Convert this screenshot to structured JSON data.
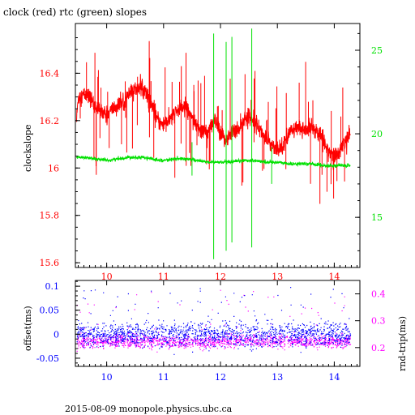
{
  "title": "clock (red) rtc (green) slopes",
  "footer": "2015-08-09  monopole.physics.ubc.ca",
  "colors": {
    "clock": "#ff0000",
    "rtc": "#00e000",
    "offset": "#0000ff",
    "rndtrip": "#ff00ff",
    "axis": "#000000"
  },
  "chart_data": [
    {
      "type": "line",
      "title": "clock (red) rtc (green) slopes",
      "xlim": [
        9.45,
        14.45
      ],
      "x_ticks": [
        "10",
        "11",
        "12",
        "13",
        "14"
      ],
      "left_axis": {
        "label": "clockslope",
        "ylim": [
          15.58,
          16.61
        ],
        "ticks": [
          "15.6",
          "15.8",
          "16",
          "16.2",
          "16.4"
        ]
      },
      "right_axis": {
        "ylim": [
          12.0,
          26.6
        ],
        "ticks": [
          "15",
          "20",
          "25"
        ]
      },
      "series": [
        {
          "name": "clock",
          "axis": "left",
          "x": [
            9.47,
            9.5,
            9.6,
            9.7,
            9.8,
            9.9,
            10.0,
            10.1,
            10.2,
            10.3,
            10.4,
            10.5,
            10.6,
            10.7,
            10.8,
            10.9,
            11.0,
            11.1,
            11.2,
            11.3,
            11.4,
            11.5,
            11.6,
            11.7,
            11.8,
            11.9,
            12.0,
            12.1,
            12.2,
            12.3,
            12.4,
            12.5,
            12.6,
            12.7,
            12.8,
            12.9,
            13.0,
            13.1,
            13.2,
            13.3,
            13.4,
            13.5,
            13.6,
            13.7,
            13.8,
            13.9,
            14.0,
            14.1,
            14.2,
            14.28
          ],
          "values": [
            16.2,
            16.3,
            16.31,
            16.3,
            16.26,
            16.24,
            16.22,
            16.25,
            16.26,
            16.28,
            16.31,
            16.33,
            16.34,
            16.32,
            16.26,
            16.2,
            16.18,
            16.2,
            16.23,
            16.25,
            16.26,
            16.22,
            16.17,
            16.15,
            16.16,
            16.2,
            16.14,
            16.12,
            16.15,
            16.16,
            16.2,
            16.22,
            16.2,
            16.16,
            16.12,
            16.1,
            16.08,
            16.1,
            16.15,
            16.16,
            16.17,
            16.16,
            16.18,
            16.15,
            16.12,
            16.08,
            16.05,
            16.07,
            16.12,
            16.14
          ]
        },
        {
          "name": "rtc",
          "axis": "right",
          "x": [
            9.47,
            9.6,
            9.8,
            10.0,
            10.2,
            10.4,
            10.6,
            10.8,
            11.0,
            11.2,
            11.4,
            11.6,
            11.8,
            12.0,
            12.2,
            12.4,
            12.6,
            12.8,
            13.0,
            13.2,
            13.4,
            13.6,
            13.8,
            14.0,
            14.2,
            14.28
          ],
          "values": [
            18.6,
            18.6,
            18.5,
            18.4,
            18.5,
            18.6,
            18.6,
            18.5,
            18.4,
            18.5,
            18.5,
            18.4,
            18.3,
            18.3,
            18.3,
            18.4,
            18.4,
            18.3,
            18.3,
            18.2,
            18.2,
            18.2,
            18.1,
            18.1,
            18.1,
            18.1
          ]
        }
      ]
    },
    {
      "type": "scatter",
      "xlim": [
        9.45,
        14.45
      ],
      "x_ticks": [
        "10",
        "11",
        "12",
        "13",
        "14"
      ],
      "left_axis": {
        "label": "offset(ms)",
        "ylim": [
          -0.067,
          0.112
        ],
        "ticks": [
          "-0.05",
          "0",
          "0.05",
          "0.1"
        ]
      },
      "right_axis": {
        "label": "rnd-trip(ms)",
        "ylim": [
          0.13,
          0.45
        ],
        "ticks": [
          "0.2",
          "0.3",
          "0.4"
        ]
      },
      "series": [
        {
          "name": "offset",
          "axis": "left",
          "center": 0.0,
          "spread": 0.022,
          "outliers_max": 0.1,
          "outliers_min": -0.06
        },
        {
          "name": "rnd-trip",
          "axis": "right",
          "center": 0.225,
          "spread": 0.02,
          "outliers_max": 0.42
        }
      ]
    }
  ]
}
